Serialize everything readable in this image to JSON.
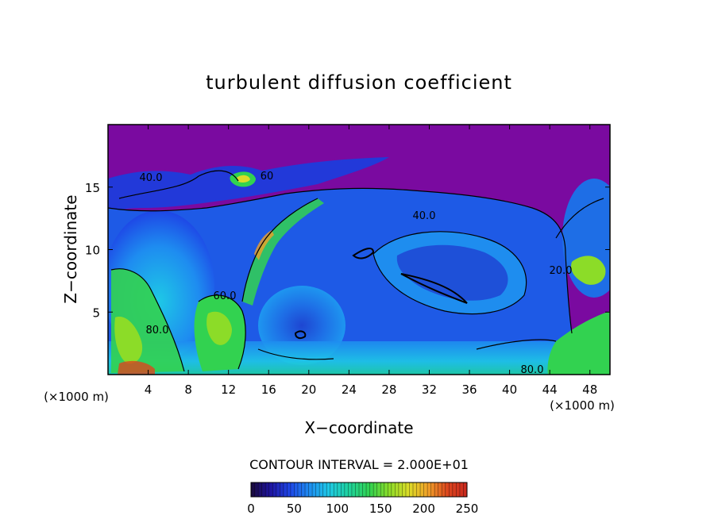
{
  "chart_data": {
    "type": "heatmap",
    "title": "turbulent diffusion coefficient",
    "xlabel": "X−coordinate",
    "ylabel": "Z−coordinate",
    "x_unit": "(×1000 m)",
    "xlim": [
      0,
      50
    ],
    "ylim": [
      0,
      20
    ],
    "x_ticks": [
      4,
      8,
      12,
      16,
      20,
      24,
      28,
      32,
      36,
      40,
      44,
      48
    ],
    "y_ticks": [
      5,
      10,
      15
    ],
    "contour_interval_text": "CONTOUR INTERVAL = 2.000E+01",
    "contour_labels": [
      "40.0",
      "40.0",
      "60",
      "80.0",
      "80.0",
      "60.0",
      "20.0"
    ],
    "colorbar": {
      "min": 0,
      "max": 250,
      "ticks": [
        0,
        50,
        100,
        150,
        200,
        250
      ],
      "colors": [
        "#1a0a3a",
        "#1e14a0",
        "#1e46e6",
        "#1e8cf0",
        "#1ec8e6",
        "#1ed2a0",
        "#32d250",
        "#8cdc28",
        "#dcdc28",
        "#f0a028",
        "#dc461e",
        "#c8281e"
      ]
    },
    "background_color": "#7a0aa0"
  }
}
